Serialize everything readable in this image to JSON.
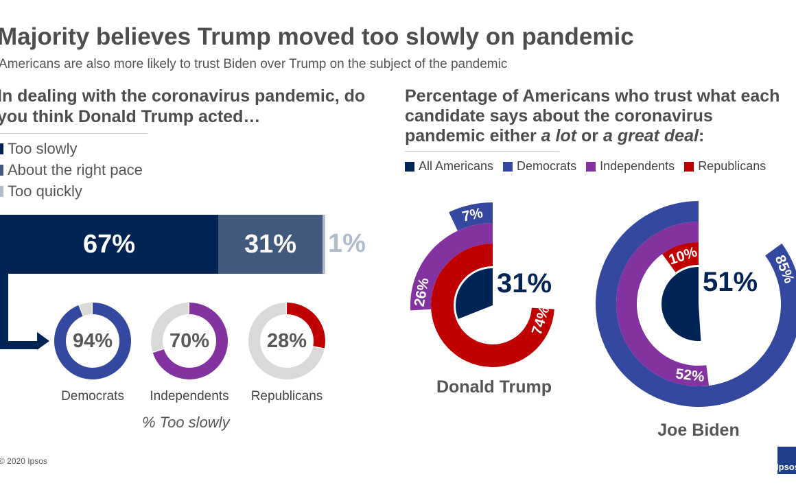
{
  "title": "Majority believes Trump moved too slowly on pandemic",
  "subtitle": "Americans are also more likely to trust Biden over Trump on the subject of the pandemic",
  "footer": "© 2020 Ipsos",
  "logo_text": "Ipsos",
  "colors": {
    "navy": "#002554",
    "slate": "#41597d",
    "light": "#b1bccb",
    "democrats": "#3548a0",
    "independents": "#8233a0",
    "republicans": "#c00000",
    "grey": "#d9d9d9"
  },
  "chart_data": [
    {
      "type": "bar",
      "title": "In dealing with the coronavirus pandemic, do you think Donald Trump acted…",
      "orientation": "horizontal-stacked",
      "series": [
        {
          "name": "Too slowly",
          "value": 67,
          "label": "67%"
        },
        {
          "name": "About the right pace",
          "value": 31,
          "label": "31%"
        },
        {
          "name": "Too quickly",
          "value": 1,
          "label": "1%"
        }
      ]
    },
    {
      "type": "pie",
      "subtype": "donut",
      "caption": "% Too slowly",
      "categories": [
        "Democrats",
        "Independents",
        "Republicans"
      ],
      "values": [
        94,
        70,
        28
      ],
      "labels": [
        "94%",
        "70%",
        "28%"
      ]
    },
    {
      "type": "radial-bar",
      "title_parts": [
        "Percentage of Americans who trust what each candidate says about the coronavirus pandemic either ",
        "a lot",
        " or ",
        "a great deal",
        ":"
      ],
      "legend": [
        "All Americans",
        "Democrats",
        "Independents",
        "Republicans"
      ],
      "candidates": [
        {
          "name": "Donald Trump",
          "values": {
            "All Americans": 31,
            "Republicans": 74,
            "Independents": 26,
            "Democrats": 7
          },
          "labels": {
            "all": "31%",
            "rep": "74%",
            "ind": "26%",
            "dem": "7%"
          }
        },
        {
          "name": "Joe Biden",
          "values": {
            "All Americans": 51,
            "Republicans": 10,
            "Independents": 52,
            "Democrats": 85
          },
          "labels": {
            "all": "51%",
            "rep": "10%",
            "ind": "52%",
            "dem": "85%"
          }
        }
      ]
    }
  ]
}
